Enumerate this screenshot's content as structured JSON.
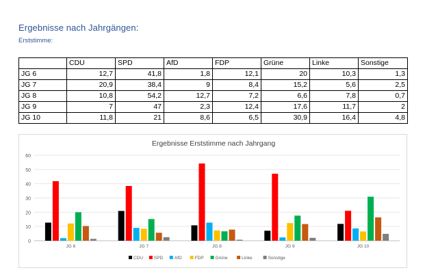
{
  "document": {
    "heading": "Ergebnisse nach Jahrgängen:",
    "subheading": "Erststimme:"
  },
  "table": {
    "headers": [
      "",
      "CDU",
      "SPD",
      "AfD",
      "FDP",
      "Grüne",
      "Linke",
      "Sonstige"
    ],
    "rows": [
      {
        "label": "JG 6",
        "values": [
          "12,7",
          "41,8",
          "1,8",
          "12,1",
          "20",
          "10,3",
          "1,3"
        ]
      },
      {
        "label": "JG 7",
        "values": [
          "20,9",
          "38,4",
          "9",
          "8,4",
          "15,2",
          "5,6",
          "2,5"
        ]
      },
      {
        "label": "JG 8",
        "values": [
          "10,8",
          "54,2",
          "12,7",
          "7,2",
          "6,6",
          "7,8",
          "0,7"
        ]
      },
      {
        "label": "JG 9",
        "values": [
          "7",
          "47",
          "2,3",
          "12,4",
          "17,6",
          "11,7",
          "2"
        ]
      },
      {
        "label": "JG 10",
        "values": [
          "11,8",
          "21",
          "8,6",
          "6,5",
          "30,9",
          "16,4",
          "4,8"
        ]
      }
    ]
  },
  "chart_data": {
    "type": "bar",
    "title": "Ergebnisse Erststimme nach Jahrgang",
    "categories": [
      "JG 6",
      "JG 7",
      "JG 8",
      "JG 9",
      "JG 10"
    ],
    "series": [
      {
        "name": "CDU",
        "color": "#000000",
        "values": [
          12.7,
          20.9,
          10.8,
          7,
          11.8
        ]
      },
      {
        "name": "SPD",
        "color": "#ff0000",
        "values": [
          41.8,
          38.4,
          54.2,
          47,
          21
        ]
      },
      {
        "name": "AfD",
        "color": "#00b0f0",
        "values": [
          1.8,
          9,
          12.7,
          2.3,
          8.6
        ]
      },
      {
        "name": "FDP",
        "color": "#ffc000",
        "values": [
          12.1,
          8.4,
          7.2,
          12.4,
          6.5
        ]
      },
      {
        "name": "Grüne",
        "color": "#00b050",
        "values": [
          20,
          15.2,
          6.6,
          17.6,
          30.9
        ]
      },
      {
        "name": "Linke",
        "color": "#c55a11",
        "values": [
          10.3,
          5.6,
          7.8,
          11.7,
          16.4
        ]
      },
      {
        "name": "Sonstige",
        "color": "#7f7f7f",
        "values": [
          1.3,
          2.5,
          0.7,
          2,
          4.8
        ]
      }
    ],
    "yticks": [
      "0",
      "10",
      "20",
      "30",
      "40",
      "50",
      "60"
    ],
    "ylim": [
      0,
      60
    ],
    "grid": true,
    "legend": "bottom"
  }
}
